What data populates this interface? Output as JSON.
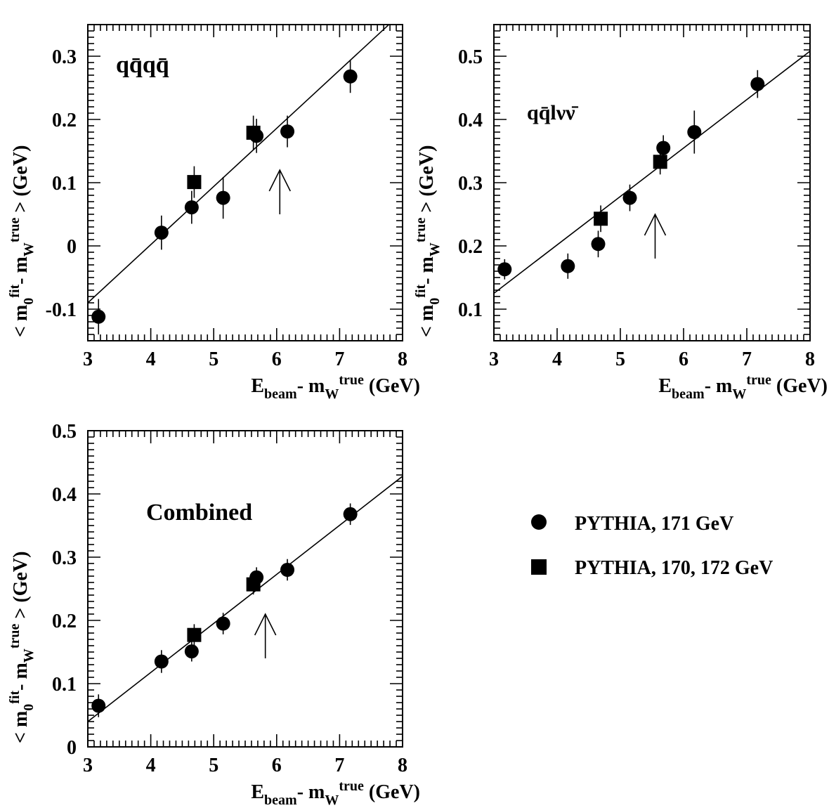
{
  "chart_data": [
    {
      "type": "scatter",
      "panel_label": {
        "main": "qq",
        "over": "q̄",
        "main2": "q",
        "over2": "q̄"
      },
      "xlim": [
        3,
        8
      ],
      "ylim": [
        -0.15,
        0.35
      ],
      "xticks": [
        "3",
        "4",
        "5",
        "6",
        "7",
        "8"
      ],
      "yticks": [
        {
          "v": -0.1,
          "t": "-0.1"
        },
        {
          "v": 0,
          "t": "0"
        },
        {
          "v": 0.1,
          "t": "0.1"
        },
        {
          "v": 0.2,
          "t": "0.2"
        },
        {
          "v": 0.3,
          "t": "0.3"
        }
      ],
      "fit_line": {
        "x": [
          3,
          8
        ],
        "y": [
          -0.09,
          0.37
        ]
      },
      "arrow": {
        "x": 6.05,
        "y_from": 0.05,
        "y_to": 0.12
      },
      "series": [
        {
          "name": "PYTHIA, 171 GeV",
          "marker": "circle",
          "points": [
            {
              "x": 3.17,
              "y": -0.112,
              "err": 0.028
            },
            {
              "x": 4.17,
              "y": 0.021,
              "err": 0.027
            },
            {
              "x": 4.65,
              "y": 0.061,
              "err": 0.026
            },
            {
              "x": 5.15,
              "y": 0.076,
              "err": 0.033
            },
            {
              "x": 5.68,
              "y": 0.174,
              "err": 0.027
            },
            {
              "x": 6.17,
              "y": 0.181,
              "err": 0.025
            },
            {
              "x": 7.17,
              "y": 0.268,
              "err": 0.026
            }
          ]
        },
        {
          "name": "PYTHIA, 170, 172 GeV",
          "marker": "square",
          "points": [
            {
              "x": 4.69,
              "y": 0.101,
              "err": 0.025
            },
            {
              "x": 5.63,
              "y": 0.179,
              "err": 0.027
            }
          ]
        }
      ]
    },
    {
      "type": "scatter",
      "panel_label": {
        "main": "qq",
        "over": "q̄",
        "main2": "lν",
        "over2": "ν̄"
      },
      "xlim": [
        3,
        8
      ],
      "ylim": [
        0.05,
        0.55
      ],
      "xticks": [
        "3",
        "4",
        "5",
        "6",
        "7",
        "8"
      ],
      "yticks": [
        {
          "v": 0.1,
          "t": "0.1"
        },
        {
          "v": 0.2,
          "t": "0.2"
        },
        {
          "v": 0.3,
          "t": "0.3"
        },
        {
          "v": 0.4,
          "t": "0.4"
        },
        {
          "v": 0.5,
          "t": "0.5"
        }
      ],
      "fit_line": {
        "x": [
          3,
          8
        ],
        "y": [
          0.125,
          0.508
        ]
      },
      "arrow": {
        "x": 5.55,
        "y_from": 0.18,
        "y_to": 0.25
      },
      "series": [
        {
          "name": "PYTHIA, 171 GeV",
          "marker": "circle",
          "points": [
            {
              "x": 3.17,
              "y": 0.163,
              "err": 0.016
            },
            {
              "x": 4.17,
              "y": 0.168,
              "err": 0.02
            },
            {
              "x": 4.65,
              "y": 0.203,
              "err": 0.021
            },
            {
              "x": 5.15,
              "y": 0.276,
              "err": 0.021
            },
            {
              "x": 5.68,
              "y": 0.355,
              "err": 0.02
            },
            {
              "x": 6.17,
              "y": 0.38,
              "err": 0.034
            },
            {
              "x": 7.17,
              "y": 0.456,
              "err": 0.022
            }
          ]
        },
        {
          "name": "PYTHIA, 170, 172 GeV",
          "marker": "square",
          "points": [
            {
              "x": 4.69,
              "y": 0.243,
              "err": 0.021
            },
            {
              "x": 5.63,
              "y": 0.333,
              "err": 0.02
            }
          ]
        }
      ]
    },
    {
      "type": "scatter",
      "panel_label": {
        "text": "Combined"
      },
      "xlim": [
        3,
        8
      ],
      "ylim": [
        0,
        0.5
      ],
      "xticks": [
        "3",
        "4",
        "5",
        "6",
        "7",
        "8"
      ],
      "yticks": [
        {
          "v": 0,
          "t": "0"
        },
        {
          "v": 0.1,
          "t": "0.1"
        },
        {
          "v": 0.2,
          "t": "0.2"
        },
        {
          "v": 0.3,
          "t": "0.3"
        },
        {
          "v": 0.4,
          "t": "0.4"
        },
        {
          "v": 0.5,
          "t": "0.5"
        }
      ],
      "fit_line": {
        "x": [
          3,
          8
        ],
        "y": [
          0.04,
          0.428
        ]
      },
      "arrow": {
        "x": 5.82,
        "y_from": 0.14,
        "y_to": 0.21
      },
      "series": [
        {
          "name": "PYTHIA, 171 GeV",
          "marker": "circle",
          "points": [
            {
              "x": 3.17,
              "y": 0.065,
              "err": 0.018
            },
            {
              "x": 4.17,
              "y": 0.135,
              "err": 0.018
            },
            {
              "x": 4.65,
              "y": 0.151,
              "err": 0.016
            },
            {
              "x": 5.15,
              "y": 0.195,
              "err": 0.017
            },
            {
              "x": 5.68,
              "y": 0.268,
              "err": 0.016
            },
            {
              "x": 6.17,
              "y": 0.28,
              "err": 0.017
            },
            {
              "x": 7.17,
              "y": 0.368,
              "err": 0.017
            }
          ]
        },
        {
          "name": "PYTHIA, 170, 172 GeV",
          "marker": "square",
          "points": [
            {
              "x": 4.69,
              "y": 0.177,
              "err": 0.017
            },
            {
              "x": 5.63,
              "y": 0.257,
              "err": 0.016
            }
          ]
        }
      ]
    }
  ],
  "axis": {
    "x": {
      "p1": "E",
      "s1": "beam",
      "p2": "- m",
      "s2": "W",
      "sup": "true",
      "p3": " (GeV)"
    },
    "y": {
      "p1": "< m",
      "s1": "0",
      "sup1": "fit",
      "p2": "- m",
      "s2": "W",
      "sup2": "true",
      "p3": " > (GeV)"
    }
  },
  "legend": [
    {
      "marker": "circle",
      "label": "PYTHIA, 171 GeV"
    },
    {
      "marker": "square",
      "label": "PYTHIA, 170, 172 GeV"
    }
  ]
}
